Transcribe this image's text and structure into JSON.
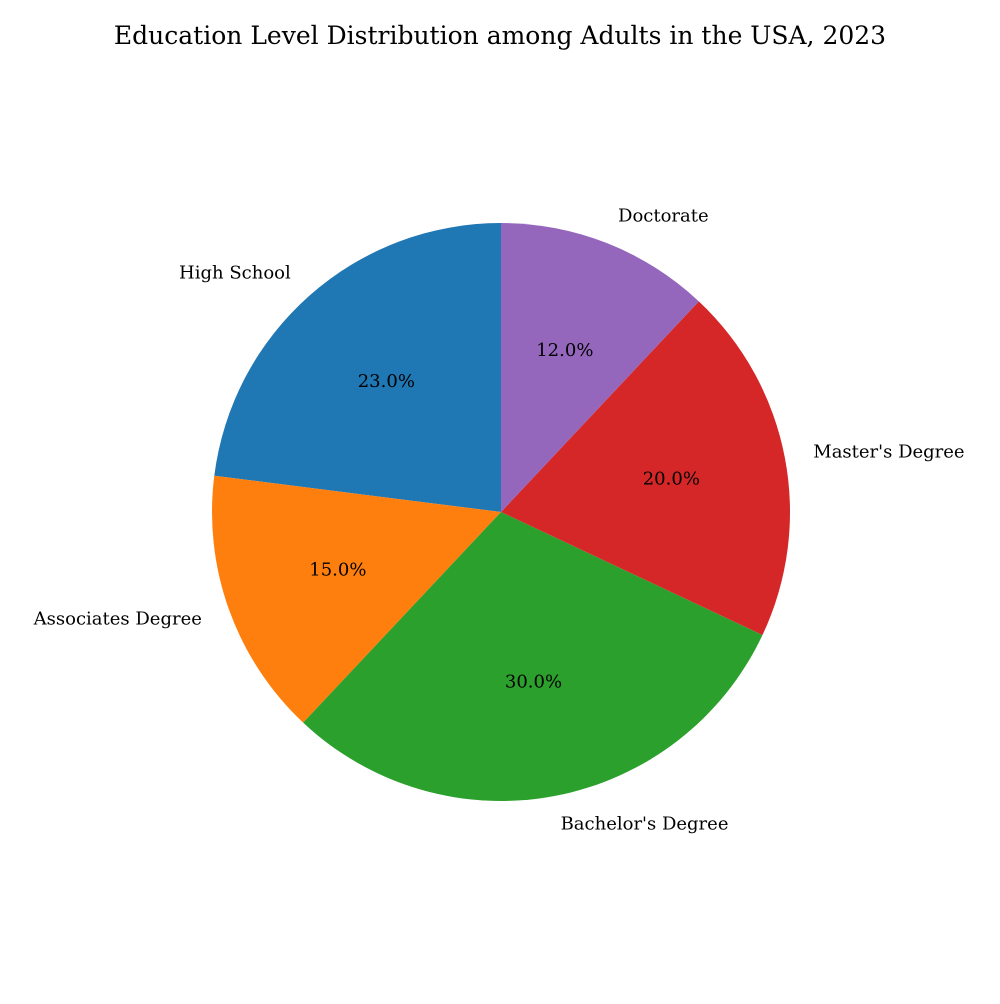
{
  "chart_data": {
    "type": "pie",
    "title": "Education Level Distribution among Adults in the USA, 2023",
    "start_angle_deg": 90,
    "direction": "counterclockwise",
    "autopct_format": "{:.1f}%",
    "slices": [
      {
        "label": "High School",
        "value": 23.0,
        "pct_text": "23.0%",
        "color": "#1f77b4"
      },
      {
        "label": "Associates Degree",
        "value": 15.0,
        "pct_text": "15.0%",
        "color": "#ff7f0e"
      },
      {
        "label": "Bachelor's Degree",
        "value": 30.0,
        "pct_text": "30.0%",
        "color": "#2ca02c"
      },
      {
        "label": "Master's Degree",
        "value": 20.0,
        "pct_text": "20.0%",
        "color": "#d62728"
      },
      {
        "label": "Doctorate",
        "value": 12.0,
        "pct_text": "12.0%",
        "color": "#9467bd"
      }
    ]
  }
}
